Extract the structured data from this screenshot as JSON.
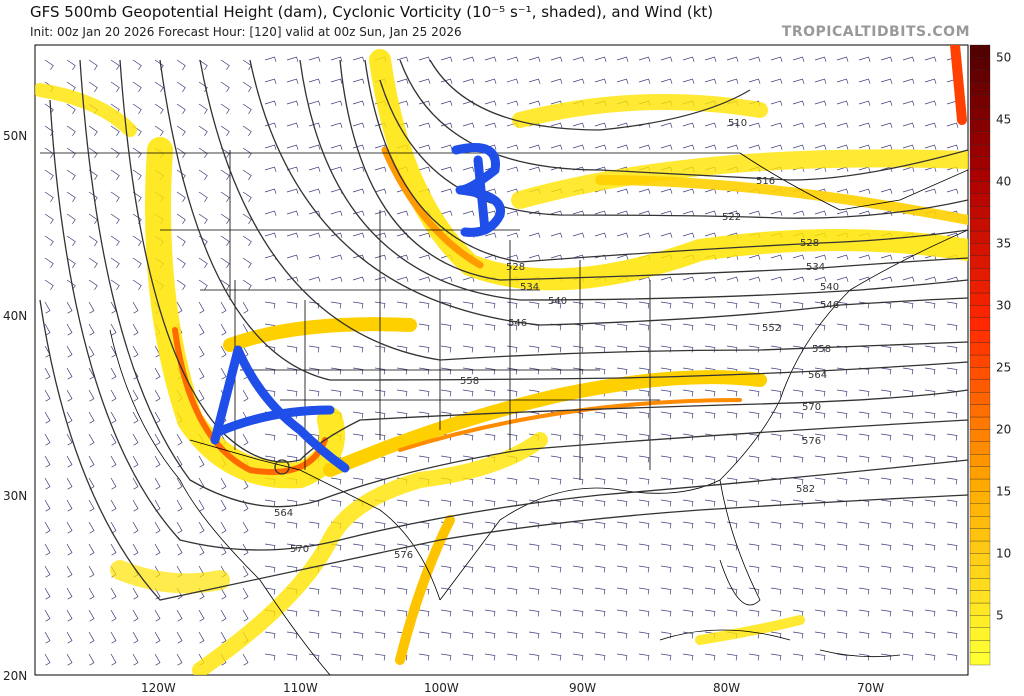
{
  "header": {
    "title": "GFS 500mb Geopotential Height (dam), Cyclonic Vorticity (10⁻⁵ s⁻¹, shaded), and Wind (kt)",
    "subtitle": "Init: 00z Jan 20 2026   Forecast Hour: [120]   valid at 00z Sun, Jan 25 2026",
    "brand": "TROPICALTIDBITS.COM"
  },
  "axes": {
    "lon_labels": [
      "120W",
      "110W",
      "100W",
      "90W",
      "80W",
      "70W"
    ],
    "lat_labels": [
      "50N",
      "40N",
      "30N",
      "20N"
    ]
  },
  "contour_labels": [
    "510",
    "516",
    "522",
    "528",
    "528",
    "534",
    "534",
    "540",
    "540",
    "546",
    "546",
    "552",
    "558",
    "558",
    "564",
    "564",
    "570",
    "570",
    "576",
    "576",
    "582"
  ],
  "annotations": {
    "a": "A",
    "b": "B",
    "color": "#1f4fe8"
  },
  "colorbar": {
    "ticks": [
      "5",
      "10",
      "15",
      "20",
      "25",
      "30",
      "35",
      "40",
      "45",
      "50"
    ],
    "min": 1,
    "max": 51,
    "colors": {
      "low": "#ffff33",
      "mid": "#ff6a00",
      "high": "#4a0000"
    }
  }
}
